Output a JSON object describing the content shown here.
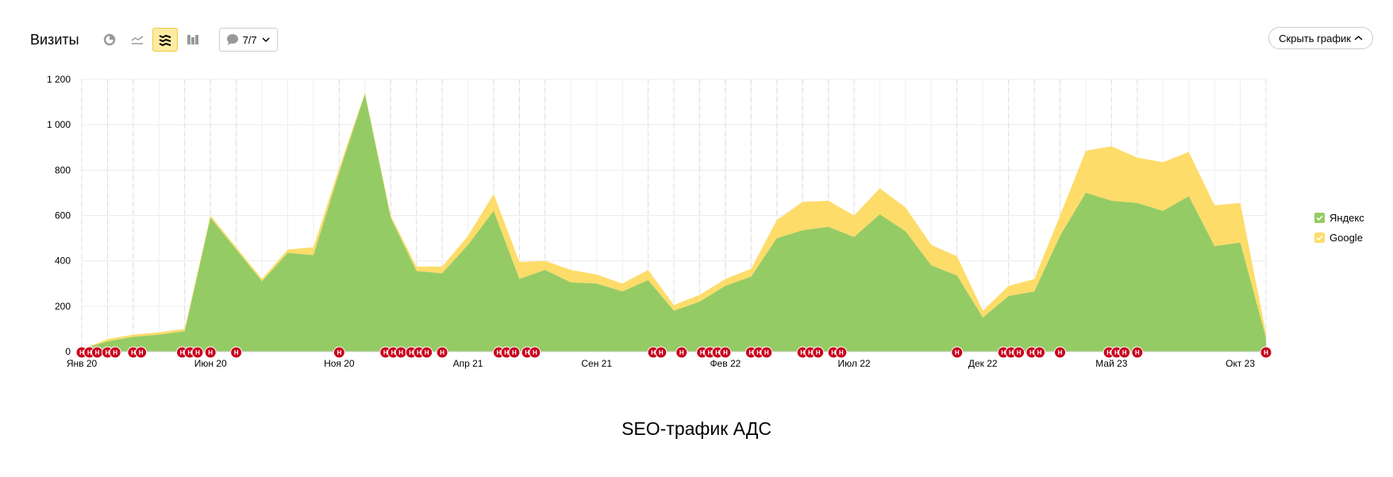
{
  "header": {
    "title": "Визиты",
    "notes_label": "7/7",
    "hide_chart_label": "Скрыть график"
  },
  "toolbar": {
    "icons": [
      "pie-chart-icon",
      "line-chart-icon",
      "stacked-area-icon",
      "bar-chart-icon",
      "comment-icon"
    ],
    "active": "stacked-area-icon"
  },
  "colors": {
    "yandex": "#95cb64",
    "google": "#fddc6a",
    "marker": "#c8001e",
    "grid": "#ececec"
  },
  "caption": "SEO-трафик АДС",
  "chart_data": {
    "type": "area",
    "stacked": true,
    "x_ticks": [
      "Янв 20",
      "Июн 20",
      "Ноя 20",
      "Апр 21",
      "Сен 21",
      "Фев 22",
      "Июл 22",
      "Дек 22",
      "Май 23",
      "Окт 23"
    ],
    "x_tick_months": [
      0,
      5,
      10,
      15,
      20,
      25,
      30,
      35,
      40,
      45
    ],
    "y_ticks": [
      "0",
      "200",
      "400",
      "600",
      "800",
      "1 000",
      "1 200"
    ],
    "ylim": [
      0,
      1200
    ],
    "months": 46,
    "series": [
      {
        "name": "Яндекс",
        "color": "#95cb64",
        "values": [
          10,
          45,
          65,
          75,
          90,
          590,
          450,
          310,
          435,
          425,
          790,
          1135,
          590,
          355,
          345,
          470,
          620,
          320,
          360,
          305,
          300,
          265,
          315,
          180,
          220,
          290,
          330,
          500,
          535,
          550,
          505,
          605,
          530,
          380,
          335,
          150,
          245,
          265,
          510,
          700,
          665,
          655,
          620,
          685,
          465,
          480,
          60
        ]
      },
      {
        "name": "Google",
        "color": "#fddc6a",
        "values": [
          0,
          10,
          10,
          10,
          10,
          10,
          10,
          10,
          15,
          35,
          20,
          5,
          10,
          20,
          30,
          40,
          75,
          75,
          40,
          55,
          40,
          35,
          45,
          25,
          30,
          30,
          35,
          80,
          125,
          115,
          95,
          115,
          105,
          90,
          85,
          30,
          45,
          55,
          90,
          185,
          240,
          200,
          215,
          195,
          180,
          175,
          20
        ]
      }
    ],
    "legend": "right",
    "grid": true,
    "annotations": {
      "marker_label": "Н",
      "positions_months": [
        0,
        0.3,
        0.6,
        1,
        1.3,
        2,
        2.3,
        3.9,
        4.2,
        4.5,
        5,
        6,
        10,
        11.8,
        12.1,
        12.4,
        12.8,
        13.1,
        13.4,
        14,
        16.2,
        16.5,
        16.8,
        17.3,
        17.6,
        22.2,
        22.5,
        23.3,
        24.1,
        24.4,
        24.7,
        25,
        26,
        26.3,
        26.6,
        28,
        28.3,
        28.6,
        29.2,
        29.5,
        34,
        35.8,
        36.1,
        36.4,
        36.9,
        37.2,
        38,
        39.9,
        40.2,
        40.5,
        41,
        46
      ]
    }
  }
}
